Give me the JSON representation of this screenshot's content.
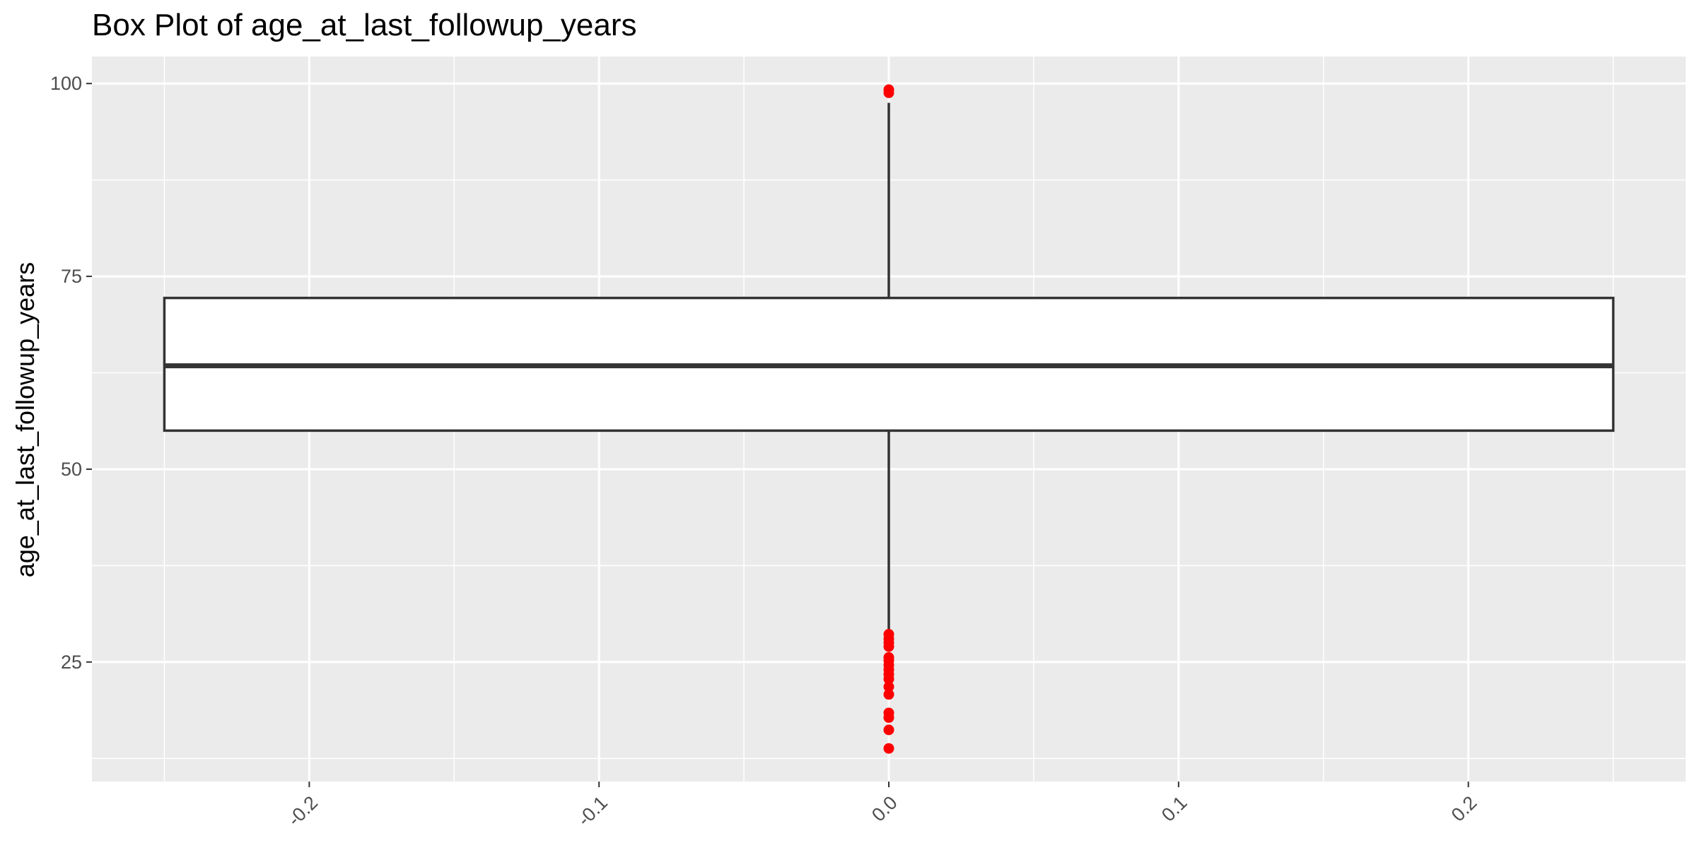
{
  "chart_data": {
    "type": "boxplot",
    "title": "Box Plot of age_at_last_followup_years",
    "xlabel": "",
    "ylabel": "age_at_last_followup_years",
    "xlim": [
      -0.275,
      0.275
    ],
    "ylim": [
      9.5,
      103.5
    ],
    "x_ticks": [
      -0.2,
      -0.1,
      0.0,
      0.1,
      0.2
    ],
    "x_tick_labels": [
      "-0.2",
      "-0.1",
      "0.0",
      "0.1",
      "0.2"
    ],
    "y_ticks": [
      25,
      50,
      75,
      100
    ],
    "y_tick_labels": [
      "25",
      "50",
      "75",
      "100"
    ],
    "x_tick_label_rotation_deg": -45,
    "grid": true,
    "box": {
      "x_center": 0.0,
      "x_left": -0.25,
      "x_right": 0.25,
      "whisker_low": 29.0,
      "q1": 55.0,
      "median": 63.4,
      "q3": 72.2,
      "whisker_high": 97.5
    },
    "outliers": [
      99.2,
      98.8,
      28.6,
      28.0,
      27.5,
      27.0,
      25.6,
      25.2,
      24.6,
      24.0,
      23.4,
      22.8,
      21.8,
      20.8,
      18.4,
      17.8,
      16.2,
      13.8
    ],
    "colors": {
      "panel_background": "#ebebeb",
      "grid": "#ffffff",
      "box_fill": "#ffffff",
      "box_stroke": "#333333",
      "outlier": "#ff0000",
      "tick_label": "#4d4d4d"
    }
  }
}
